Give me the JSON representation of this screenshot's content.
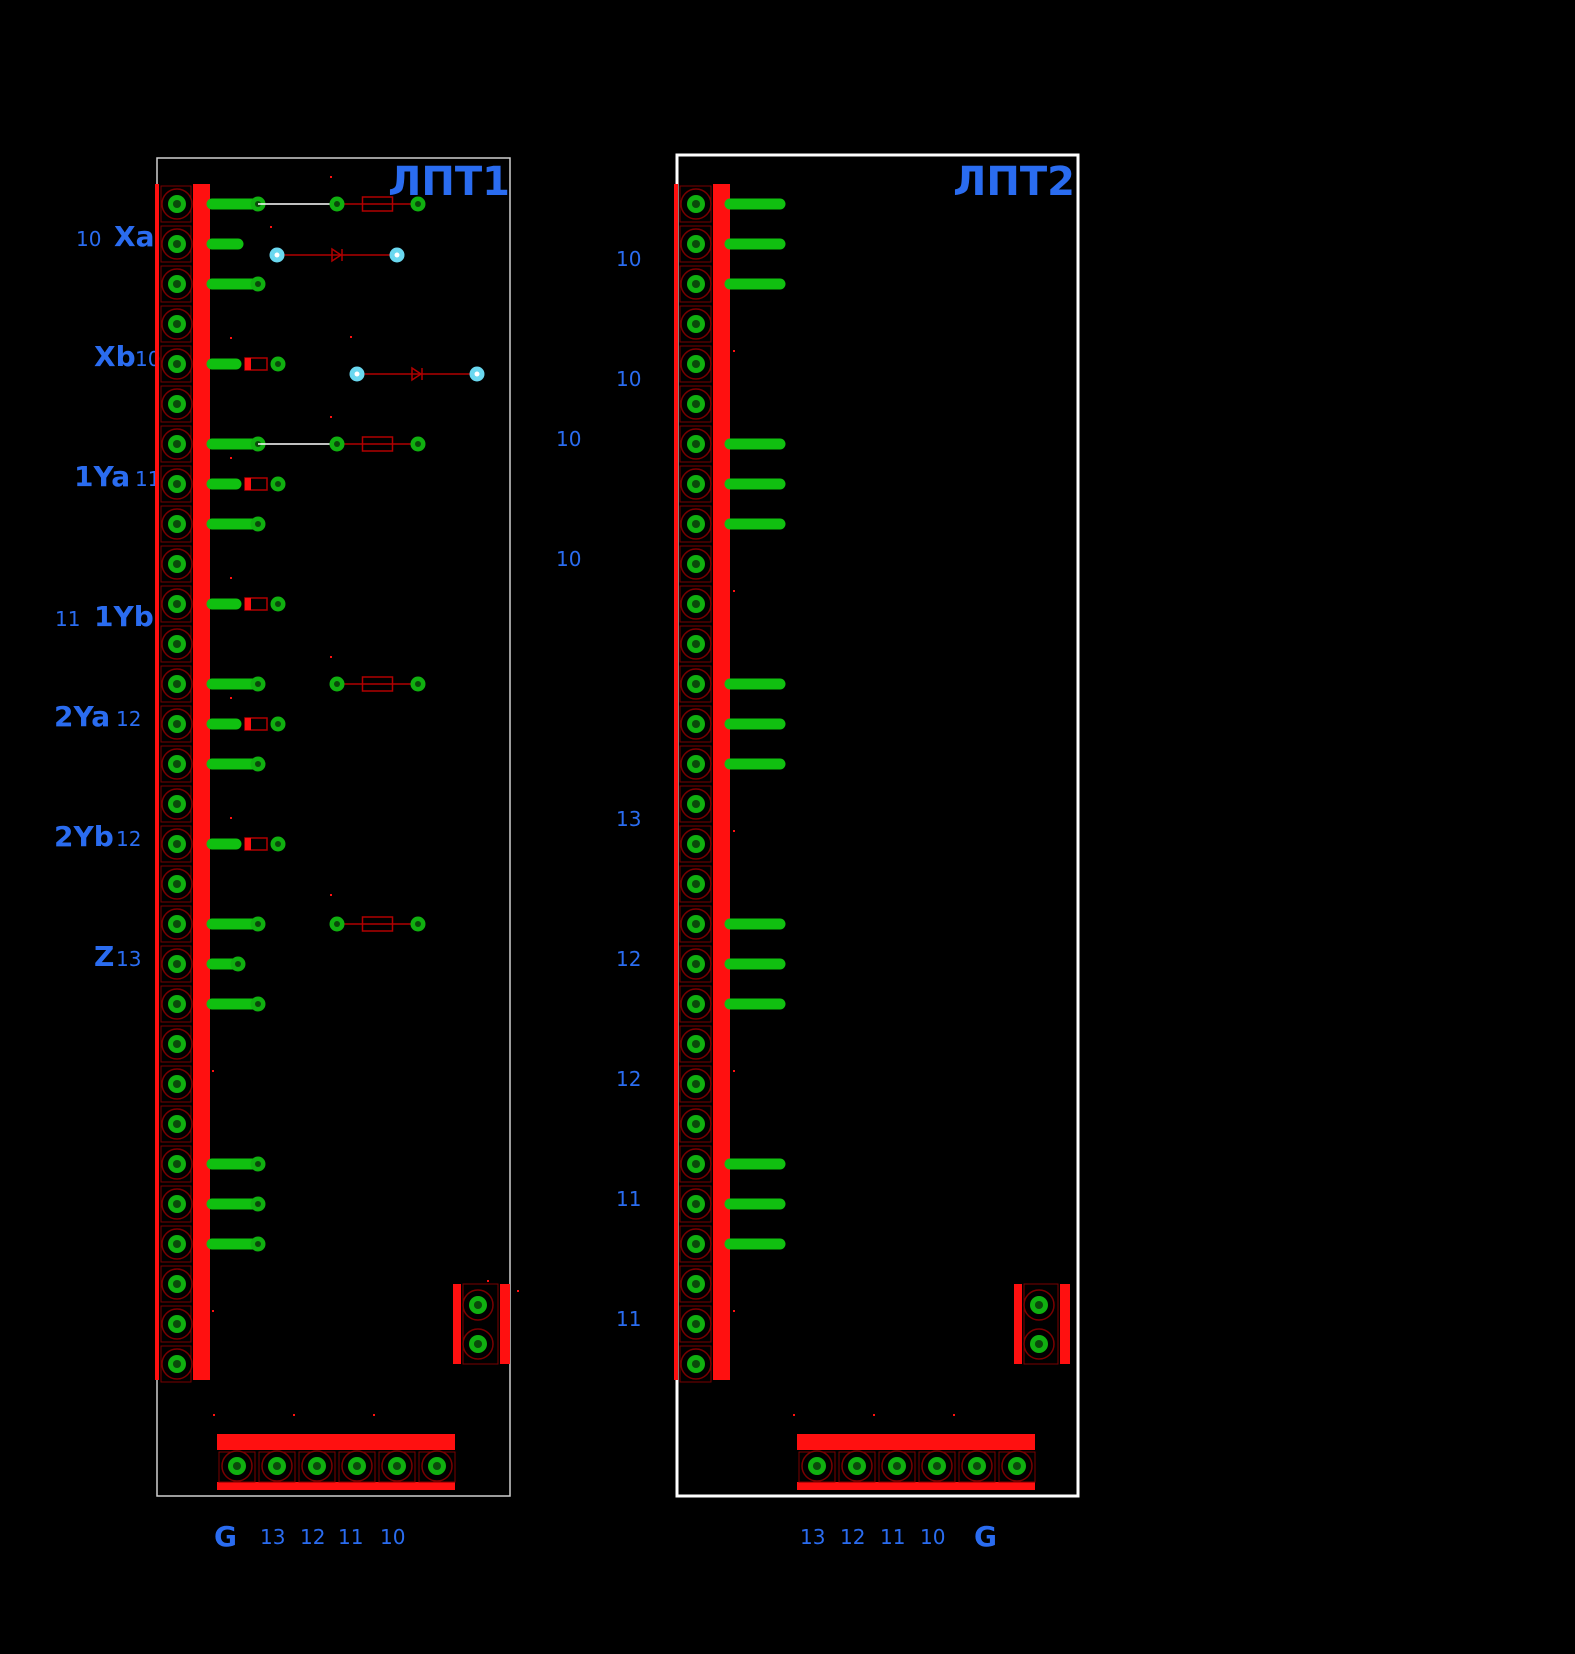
{
  "colors": {
    "background": "#000000",
    "copper_green": "#10c010",
    "pad_ring": "#10b010",
    "pad_hole": "#0a4a0a",
    "red_layer": "#ff1010",
    "dark_red": "#b00000",
    "label_blue": "#2a6cf0",
    "via_cyan": "#6ad8f0",
    "outline_white": "#ffffff",
    "outline_gray": "#d0d0d0"
  },
  "boards": [
    {
      "name": "ЛПТ1",
      "bottom_labels": [
        "G",
        "13",
        "12",
        "11",
        "10"
      ]
    },
    {
      "name": "ЛПТ2",
      "bottom_labels": [
        "13",
        "12",
        "11",
        "10",
        "G"
      ]
    }
  ],
  "left_labels": [
    {
      "text": "Xa",
      "num": "10"
    },
    {
      "text": "Xb",
      "num": "10"
    },
    {
      "text": "1Ya",
      "num": "11"
    },
    {
      "text": "1Yb",
      "num": "11"
    },
    {
      "text": "2Ya",
      "num": "12"
    },
    {
      "text": "2Yb",
      "num": "12"
    },
    {
      "text": "Z",
      "num": "13"
    }
  ],
  "middle_numbers": [
    "10",
    "10",
    "10",
    "10",
    "13",
    "12",
    "12",
    "11",
    "11"
  ],
  "icons": {
    "resistor": "resistor-icon",
    "diode": "diode-icon",
    "pad": "pad-icon",
    "via": "via-icon"
  }
}
